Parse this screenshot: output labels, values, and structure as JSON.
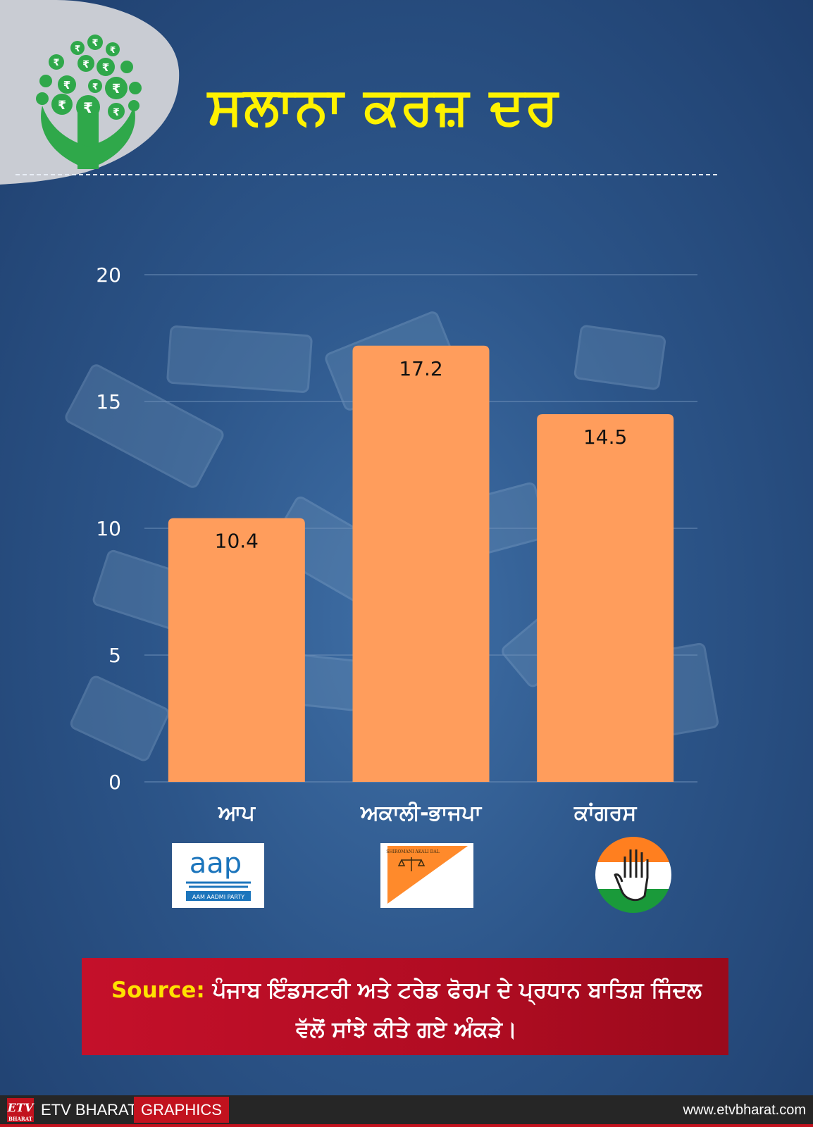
{
  "title": "ਸਲਾਨਾ ਕਰਜ਼ ਦਰ",
  "chart_data": {
    "type": "bar",
    "categories": [
      "ਆਪ",
      "ਅਕਾਲੀ-ਭਾਜਪਾ",
      "ਕਾਂਗਰਸ"
    ],
    "values": [
      10.4,
      17.2,
      14.5
    ],
    "value_labels": [
      "10.4",
      "17.2",
      "14.5"
    ],
    "yticks": [
      "0",
      "5",
      "10",
      "15",
      "20"
    ],
    "ylim": [
      0,
      20
    ],
    "grid": true,
    "bar_color": "#ff9d5c"
  },
  "logos": {
    "aap": {
      "wordmark": "aap",
      "caption": "AAM AADMI PARTY"
    },
    "akali": {
      "caption": "SHIROMANI AKALI DAL"
    }
  },
  "source": {
    "label": "Source:",
    "text": "ਪੰਜਾਬ ਇੰਡਸਟਰੀ ਅਤੇ ਟਰੇਡ ਫੋਰਮ ਦੇ ਪ੍ਰਧਾਨ ਬਾਤਿਸ਼ ਜਿੰਦਲ ਵੱਲੋਂ ਸਾਂਝੇ ਕੀਤੇ ਗਏ ਅੰਕੜੇ।"
  },
  "footer": {
    "etv_mark": "ETV",
    "etv_sub": "BHARAT",
    "brand": "ETV BHARAT",
    "tag": "GRAPHICS",
    "website": "www.etvbharat.com"
  }
}
